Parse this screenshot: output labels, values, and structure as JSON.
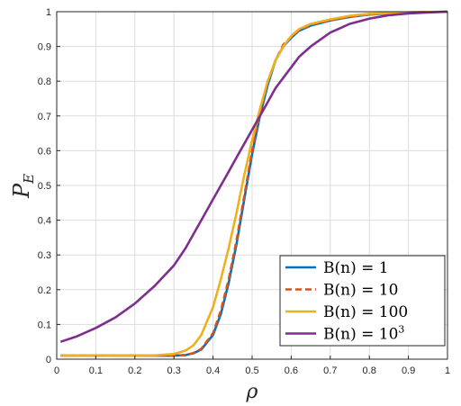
{
  "chart_data": {
    "type": "line",
    "xlabel": "ρ",
    "ylabel": "P",
    "ylabel_sub": "E",
    "xlim": [
      0,
      1
    ],
    "ylim": [
      0,
      1
    ],
    "grid": true,
    "legend_position": "bottom-right",
    "x_ticks": [
      "0",
      "0.1",
      "0.2",
      "0.3",
      "0.4",
      "0.5",
      "0.6",
      "0.7",
      "0.8",
      "0.9",
      "1"
    ],
    "y_ticks": [
      "0",
      "0.1",
      "0.2",
      "0.3",
      "0.4",
      "0.5",
      "0.6",
      "0.7",
      "0.8",
      "0.9",
      "1"
    ],
    "x": [
      0.01,
      0.05,
      0.1,
      0.15,
      0.2,
      0.25,
      0.3,
      0.33,
      0.35,
      0.37,
      0.4,
      0.42,
      0.44,
      0.46,
      0.48,
      0.5,
      0.52,
      0.54,
      0.56,
      0.58,
      0.6,
      0.62,
      0.65,
      0.7,
      0.75,
      0.8,
      0.85,
      0.9,
      0.95,
      1.0
    ],
    "series": [
      {
        "name": "B(n) = 1",
        "legend_main": "B(n) = 1",
        "legend_sup": "",
        "color": "#0072BD",
        "dash": "solid",
        "values": [
          0.01,
          0.01,
          0.01,
          0.01,
          0.01,
          0.01,
          0.01,
          0.012,
          0.017,
          0.028,
          0.07,
          0.13,
          0.22,
          0.33,
          0.46,
          0.59,
          0.7,
          0.79,
          0.86,
          0.9,
          0.925,
          0.945,
          0.96,
          0.975,
          0.985,
          0.992,
          0.995,
          0.998,
          0.999,
          1.0
        ]
      },
      {
        "name": "B(n) = 10",
        "legend_main": "B(n) = 10",
        "legend_sup": "",
        "color": "#D95319",
        "dash": "dashed",
        "values": [
          0.01,
          0.01,
          0.01,
          0.01,
          0.01,
          0.01,
          0.01,
          0.012,
          0.018,
          0.03,
          0.075,
          0.14,
          0.23,
          0.34,
          0.47,
          0.6,
          0.71,
          0.8,
          0.86,
          0.905,
          0.928,
          0.947,
          0.962,
          0.976,
          0.986,
          0.992,
          0.995,
          0.998,
          0.999,
          1.0
        ]
      },
      {
        "name": "B(n) = 100",
        "legend_main": "B(n) = 100",
        "legend_sup": "",
        "color": "#EDB120",
        "dash": "solid",
        "values": [
          0.01,
          0.01,
          0.01,
          0.01,
          0.01,
          0.011,
          0.015,
          0.025,
          0.04,
          0.07,
          0.15,
          0.23,
          0.32,
          0.42,
          0.53,
          0.63,
          0.72,
          0.8,
          0.86,
          0.9,
          0.93,
          0.95,
          0.965,
          0.978,
          0.988,
          0.994,
          0.996,
          0.998,
          0.999,
          1.0
        ]
      },
      {
        "name": "B(n) = 10^3",
        "legend_main": "B(n) = 10",
        "legend_sup": "3",
        "color": "#7E2F8E",
        "dash": "solid",
        "values": [
          0.05,
          0.065,
          0.09,
          0.12,
          0.16,
          0.21,
          0.27,
          0.32,
          0.36,
          0.4,
          0.46,
          0.5,
          0.54,
          0.58,
          0.62,
          0.66,
          0.7,
          0.74,
          0.78,
          0.81,
          0.84,
          0.87,
          0.9,
          0.94,
          0.965,
          0.98,
          0.99,
          0.995,
          0.998,
          1.0
        ]
      }
    ]
  }
}
